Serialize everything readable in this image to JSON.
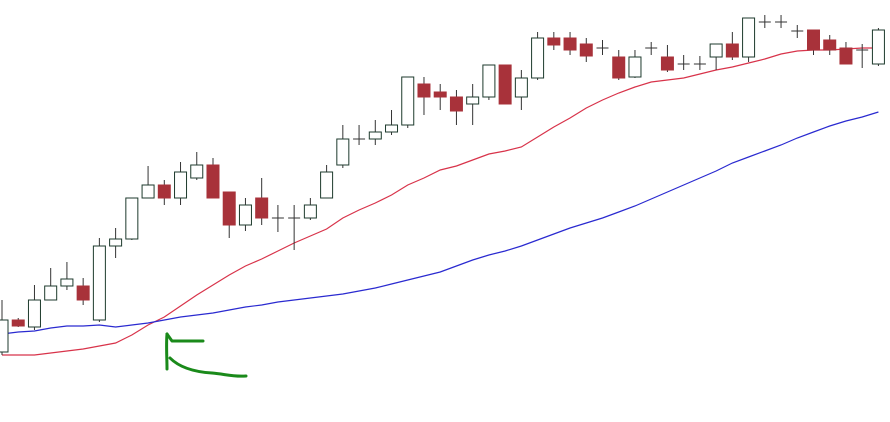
{
  "chart_data": {
    "type": "candlestick",
    "categories": [
      null,
      null,
      null,
      null,
      null,
      null,
      null,
      null,
      null,
      null,
      null,
      null,
      null,
      null,
      null,
      null,
      null,
      null,
      null,
      null,
      null,
      null,
      null,
      null,
      null,
      null,
      null,
      null,
      null,
      null,
      null,
      null,
      null,
      null,
      null,
      null,
      null,
      null,
      null,
      null,
      null,
      null,
      null,
      null,
      null,
      null,
      null,
      null,
      null,
      null,
      null,
      null,
      null,
      null,
      null
    ],
    "open": [
      70,
      102,
      95,
      122,
      136,
      136,
      102,
      176,
      183,
      224,
      237,
      224,
      244,
      257,
      230,
      197,
      224,
      204,
      204,
      204,
      224,
      257,
      283,
      283,
      290,
      297,
      338,
      330,
      325,
      318,
      325,
      357,
      325,
      344,
      384,
      384,
      378,
      374,
      365,
      345,
      374,
      365,
      358,
      358,
      365,
      378,
      365,
      400,
      400,
      391,
      392,
      382,
      374,
      372,
      358
    ],
    "high": [
      122,
      104,
      137,
      154,
      160,
      144,
      184,
      194,
      224,
      256,
      242,
      260,
      270,
      264,
      230,
      224,
      244,
      217,
      217,
      224,
      257,
      297,
      297,
      302,
      312,
      345,
      345,
      338,
      332,
      338,
      357,
      357,
      352,
      390,
      390,
      390,
      384,
      382,
      372,
      372,
      380,
      377,
      367,
      366,
      378,
      390,
      404,
      407,
      407,
      397,
      392,
      387,
      380,
      378,
      394
    ],
    "low": [
      67,
      95,
      92,
      122,
      132,
      117,
      100,
      164,
      182,
      224,
      217,
      217,
      242,
      224,
      184,
      191,
      197,
      190,
      172,
      202,
      224,
      254,
      277,
      277,
      287,
      294,
      307,
      312,
      297,
      297,
      322,
      318,
      312,
      342,
      372,
      367,
      360,
      367,
      342,
      344,
      367,
      350,
      352,
      352,
      352,
      362,
      360,
      394,
      394,
      384,
      367,
      367,
      358,
      354,
      356
    ],
    "close": [
      102,
      96,
      122,
      136,
      143,
      122,
      176,
      183,
      224,
      237,
      224,
      250,
      257,
      224,
      197,
      217,
      204,
      204,
      204,
      217,
      250,
      283,
      283,
      290,
      297,
      345,
      325,
      325,
      311,
      325,
      357,
      318,
      344,
      384,
      377,
      372,
      366,
      374,
      344,
      365,
      374,
      352,
      358,
      358,
      378,
      365,
      404,
      400,
      400,
      391,
      372,
      372,
      358,
      372,
      392
    ],
    "up_color": "#ffffff",
    "down_color": "#a8323a",
    "lines": [
      {
        "color": "#d8334a",
        "values": [
          67,
          67,
          67,
          69,
          71,
          73,
          76,
          79,
          87,
          97,
          105,
          116,
          127,
          137,
          147,
          156,
          163,
          171,
          179,
          186,
          193,
          204,
          212,
          219,
          227,
          237,
          244,
          252,
          256,
          262,
          268,
          271,
          275,
          285,
          295,
          304,
          314,
          322,
          329,
          335,
          340,
          342,
          344,
          348,
          352,
          355,
          359,
          363,
          368,
          371,
          372,
          372,
          373,
          374,
          374
        ]
      },
      {
        "color": "#2a2ad0",
        "values": [
          88,
          90,
          91,
          94,
          96,
          96,
          97,
          95,
          97,
          99,
          102,
          105,
          107,
          109,
          112,
          115,
          117,
          120,
          122,
          124,
          126,
          128,
          131,
          134,
          138,
          142,
          146,
          150,
          156,
          162,
          167,
          171,
          176,
          182,
          188,
          194,
          199,
          204,
          210,
          216,
          223,
          230,
          237,
          244,
          251,
          259,
          265,
          271,
          277,
          284,
          290,
          296,
          301,
          305,
          310
        ]
      }
    ],
    "ylim": [
      0,
      422
    ]
  }
}
